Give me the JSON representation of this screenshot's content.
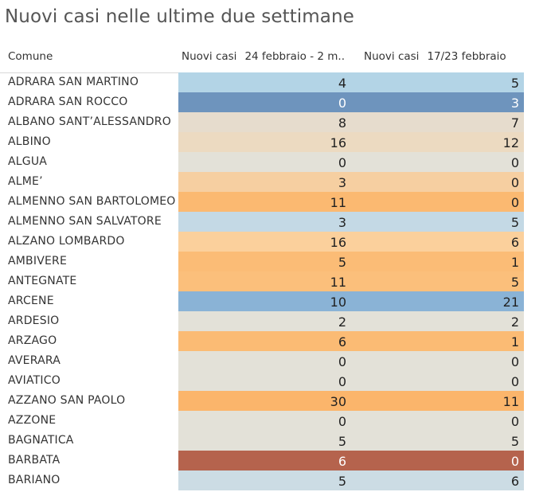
{
  "title": "Nuovi casi nelle ultime due settimane",
  "chart_data": {
    "type": "table",
    "row_header": "Comune",
    "columns": [
      {
        "measure": "Nuovi casi",
        "period": "24 febbraio - 2 m.."
      },
      {
        "measure": "Nuovi casi",
        "period": "17/23 febbraio"
      }
    ],
    "rows": [
      {
        "comune": "ADRARA SAN MARTINO",
        "values": [
          4,
          5
        ],
        "color": "#b3d4e6",
        "text_color": "#222222"
      },
      {
        "comune": "ADRARA SAN ROCCO",
        "values": [
          0,
          3
        ],
        "color": "#6e94bd",
        "text_color": "#ffffff"
      },
      {
        "comune": "ALBANO SANT’ALESSANDRO",
        "values": [
          8,
          7
        ],
        "color": "#e6dccd",
        "text_color": "#222222"
      },
      {
        "comune": "ALBINO",
        "values": [
          16,
          12
        ],
        "color": "#ecdac1",
        "text_color": "#222222"
      },
      {
        "comune": "ALGUA",
        "values": [
          0,
          0
        ],
        "color": "#e3e1d8",
        "text_color": "#222222"
      },
      {
        "comune": "ALME’",
        "values": [
          3,
          0
        ],
        "color": "#f6cfa1",
        "text_color": "#222222"
      },
      {
        "comune": "ALMENNO SAN BARTOLOMEO",
        "values": [
          11,
          0
        ],
        "color": "#fbb971",
        "text_color": "#222222"
      },
      {
        "comune": "ALMENNO SAN SALVATORE",
        "values": [
          3,
          5
        ],
        "color": "#c4d9e5",
        "text_color": "#222222"
      },
      {
        "comune": "ALZANO LOMBARDO",
        "values": [
          16,
          6
        ],
        "color": "#fbd09c",
        "text_color": "#222222"
      },
      {
        "comune": "AMBIVERE",
        "values": [
          5,
          1
        ],
        "color": "#fbbc76",
        "text_color": "#222222"
      },
      {
        "comune": "ANTEGNATE",
        "values": [
          11,
          5
        ],
        "color": "#fbbf7b",
        "text_color": "#222222"
      },
      {
        "comune": "ARCENE",
        "values": [
          10,
          21
        ],
        "color": "#8ab3d6",
        "text_color": "#222222"
      },
      {
        "comune": "ARDESIO",
        "values": [
          2,
          2
        ],
        "color": "#e3e1d8",
        "text_color": "#222222"
      },
      {
        "comune": "ARZAGO",
        "values": [
          6,
          1
        ],
        "color": "#fbbb74",
        "text_color": "#222222"
      },
      {
        "comune": "AVERARA",
        "values": [
          0,
          0
        ],
        "color": "#e3e1d8",
        "text_color": "#222222"
      },
      {
        "comune": "AVIATICO",
        "values": [
          0,
          0
        ],
        "color": "#e3e1d8",
        "text_color": "#222222"
      },
      {
        "comune": "AZZANO SAN PAOLO",
        "values": [
          30,
          11
        ],
        "color": "#fbb56b",
        "text_color": "#222222"
      },
      {
        "comune": "AZZONE",
        "values": [
          0,
          0
        ],
        "color": "#e3e1d8",
        "text_color": "#222222"
      },
      {
        "comune": "BAGNATICA",
        "values": [
          5,
          5
        ],
        "color": "#e3e1d8",
        "text_color": "#222222"
      },
      {
        "comune": "BARBATA",
        "values": [
          6,
          0
        ],
        "color": "#b5634d",
        "text_color": "#ffffff"
      },
      {
        "comune": "BARIANO",
        "values": [
          5,
          6
        ],
        "color": "#ccdce4",
        "text_color": "#222222"
      }
    ]
  }
}
